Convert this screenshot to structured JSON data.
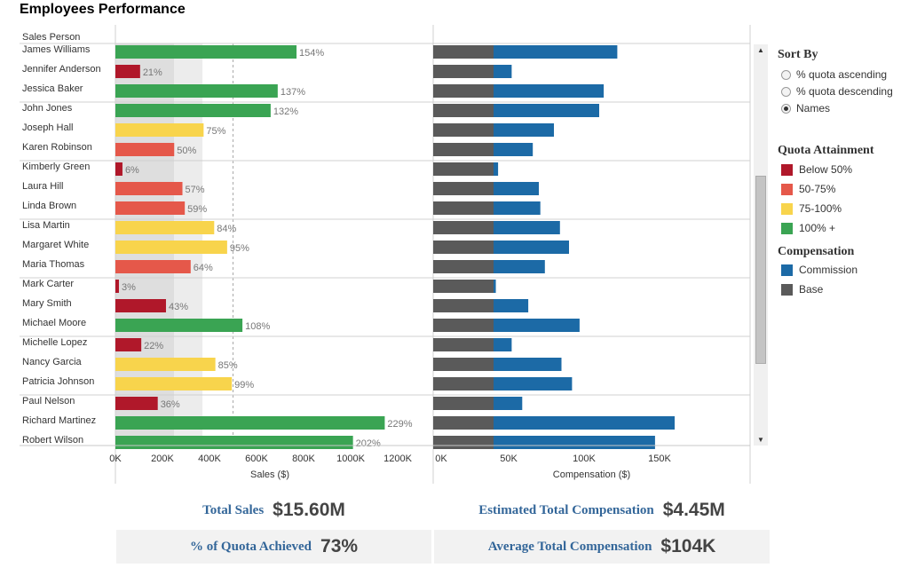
{
  "title": "Employees Performance",
  "row_header": "Sales Person",
  "sort": {
    "title": "Sort By",
    "options": [
      "% quota ascending",
      "% quota descending",
      "Names"
    ],
    "selected": "Names"
  },
  "quota_legend": {
    "title": "Quota Attainment",
    "items": [
      {
        "label": "Below 50%",
        "color": "#b0182a"
      },
      {
        "label": "50-75%",
        "color": "#e5584a"
      },
      {
        "label": "75-100%",
        "color": "#f8d44c"
      },
      {
        "label": "100% +",
        "color": "#3aa453"
      }
    ]
  },
  "comp_legend": {
    "title": "Compensation",
    "items": [
      {
        "label": "Commission",
        "color": "#1c6aa6"
      },
      {
        "label": "Base",
        "color": "#5a5a5a"
      }
    ]
  },
  "kpis": {
    "total_sales": {
      "label": "Total Sales",
      "value": "$15.60M"
    },
    "est_comp": {
      "label": "Estimated Total Compensation",
      "value": "$4.45M"
    },
    "quota_achieved": {
      "label": "% of Quota Achieved",
      "value": "73%"
    },
    "avg_comp": {
      "label": "Average Total Compensation",
      "value": "$104K"
    }
  },
  "chart_data": [
    {
      "type": "bar",
      "orientation": "horizontal",
      "xlabel": "Sales ($)",
      "ticks": [
        "0K",
        "200K",
        "400K",
        "600K",
        "800K",
        "1000K",
        "1200K"
      ],
      "xlim": [
        0,
        1300000
      ],
      "categories": [
        "James Williams",
        "Jennifer Anderson",
        "Jessica Baker",
        "John Jones",
        "Joseph Hall",
        "Karen Robinson",
        "Kimberly Green",
        "Laura Hill",
        "Linda Brown",
        "Lisa Martin",
        "Margaret White",
        "Maria Thomas",
        "Mark Carter",
        "Mary Smith",
        "Michael Moore",
        "Michelle Lopez",
        "Nancy Garcia",
        "Patricia Johnson",
        "Paul Nelson",
        "Richard Martinez",
        "Robert Wilson"
      ],
      "values": [
        770000,
        105000,
        690000,
        660000,
        375000,
        250000,
        30000,
        285000,
        295000,
        420000,
        475000,
        320000,
        15000,
        215000,
        540000,
        110000,
        425000,
        495000,
        180000,
        1145000,
        1010000
      ],
      "labels": [
        "154%",
        "21%",
        "137%",
        "132%",
        "75%",
        "50%",
        "6%",
        "57%",
        "59%",
        "84%",
        "95%",
        "64%",
        "3%",
        "43%",
        "108%",
        "22%",
        "85%",
        "99%",
        "36%",
        "229%",
        "202%"
      ],
      "quota_pct": [
        154,
        21,
        137,
        132,
        75,
        50,
        6,
        57,
        59,
        84,
        95,
        64,
        3,
        43,
        108,
        22,
        85,
        99,
        36,
        229,
        202
      ]
    },
    {
      "type": "bar",
      "orientation": "horizontal",
      "stacked": true,
      "xlabel": "Compensation ($)",
      "ticks": [
        "0K",
        "50K",
        "100K",
        "150K"
      ],
      "xlim": [
        0,
        183000
      ],
      "series": [
        {
          "name": "Base",
          "values": [
            40000,
            40000,
            40000,
            40000,
            40000,
            40000,
            40000,
            40000,
            40000,
            40000,
            40000,
            40000,
            40000,
            40000,
            40000,
            40000,
            40000,
            40000,
            40000,
            40000,
            40000
          ]
        },
        {
          "name": "Commission",
          "values": [
            82000,
            12000,
            73000,
            70000,
            40000,
            26000,
            3000,
            30000,
            31000,
            44000,
            50000,
            34000,
            1500,
            23000,
            57000,
            12000,
            45000,
            52000,
            19000,
            120000,
            107000
          ]
        }
      ]
    }
  ]
}
